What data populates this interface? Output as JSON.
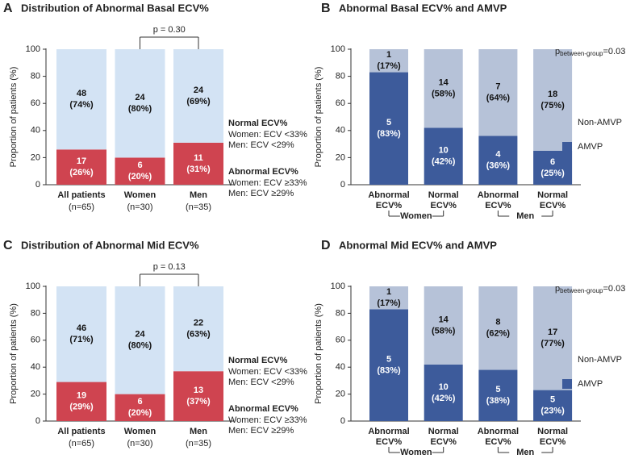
{
  "chart_data": [
    {
      "type": "bar",
      "stacked": true,
      "panel": "A",
      "title": "Distribution of Abnormal Basal ECV%",
      "ylabel": "Proportion of patients (%)",
      "categories": [
        "All patients",
        "Women",
        "Men"
      ],
      "category_notes": [
        "(n=65)",
        "(n=30)",
        "(n=35)"
      ],
      "series": [
        {
          "name": "Abnormal ECV%",
          "color": "#cf4450",
          "text_color": "#ffffff",
          "legend_details": [
            "Women: ECV ≥33%",
            "Men: ECV ≥29%"
          ],
          "values": [
            26,
            20,
            31
          ],
          "value_labels": [
            "(26%)",
            "(20%)",
            "(31%)"
          ],
          "counts": [
            17,
            6,
            11
          ]
        },
        {
          "name": "Normal ECV%",
          "color": "#d3e3f4",
          "text_color": "#111111",
          "legend_details": [
            "Women: ECV <33%",
            "Men: ECV <29%"
          ],
          "values": [
            74,
            80,
            69
          ],
          "value_labels": [
            "(74%)",
            "(80%)",
            "(69%)"
          ],
          "counts": [
            48,
            24,
            24
          ]
        }
      ],
      "annotation": "p = 0.30",
      "ylim": [
        0,
        100
      ],
      "yticks": [
        0,
        20,
        40,
        60,
        80,
        100
      ],
      "grid": false
    },
    {
      "type": "bar",
      "stacked": true,
      "panel": "B",
      "title": "Abnormal Basal ECV% and AMVP",
      "ylabel": "Proportion of patients (%)",
      "categories": [
        [
          "Abnormal",
          "ECV%"
        ],
        [
          "Normal",
          "ECV%"
        ],
        [
          "Abnormal",
          "ECV%"
        ],
        [
          "Normal",
          "ECV%"
        ]
      ],
      "groups": [
        "Women",
        "Men"
      ],
      "series": [
        {
          "name": "AMVP",
          "color": "#3d5b9b",
          "text_color": "#ffffff",
          "values": [
            83,
            42,
            36,
            25
          ],
          "value_labels": [
            "(83%)",
            "(42%)",
            "(36%)",
            "(25%)"
          ],
          "counts": [
            5,
            10,
            4,
            6
          ]
        },
        {
          "name": "Non-AMVP",
          "color": "#b6c2d8",
          "text_color": "#111111",
          "values": [
            17,
            58,
            64,
            75
          ],
          "value_labels": [
            "(17%)",
            "(58%)",
            "(64%)",
            "(75%)"
          ],
          "counts": [
            1,
            14,
            7,
            18
          ]
        }
      ],
      "pvalue": {
        "symbol": "p",
        "subscript": "between-group",
        "text": "=0.03"
      },
      "ylim": [
        0,
        100
      ],
      "yticks": [
        0,
        20,
        40,
        60,
        80,
        100
      ],
      "grid": false
    },
    {
      "type": "bar",
      "stacked": true,
      "panel": "C",
      "title": "Distribution of Abnormal Mid ECV%",
      "ylabel": "Proportion of patients (%)",
      "categories": [
        "All patients",
        "Women",
        "Men"
      ],
      "category_notes": [
        "(n=65)",
        "(n=30)",
        "(n=35)"
      ],
      "series": [
        {
          "name": "Abnormal ECV%",
          "color": "#cf4450",
          "text_color": "#ffffff",
          "legend_details": [
            "Women: ECV ≥33%",
            "Men: ECV ≥29%"
          ],
          "values": [
            29,
            20,
            37
          ],
          "value_labels": [
            "(29%)",
            "(20%)",
            "(37%)"
          ],
          "counts": [
            19,
            6,
            13
          ]
        },
        {
          "name": "Normal ECV%",
          "color": "#d3e3f4",
          "text_color": "#111111",
          "legend_details": [
            "Women: ECV <33%",
            "Men: ECV <29%"
          ],
          "values": [
            71,
            80,
            63
          ],
          "value_labels": [
            "(71%)",
            "(80%)",
            "(63%)"
          ],
          "counts": [
            46,
            24,
            22
          ]
        }
      ],
      "annotation": "p = 0.13",
      "ylim": [
        0,
        100
      ],
      "yticks": [
        0,
        20,
        40,
        60,
        80,
        100
      ],
      "grid": false
    },
    {
      "type": "bar",
      "stacked": true,
      "panel": "D",
      "title": "Abnormal Mid ECV% and AMVP",
      "ylabel": "Proportion of patients (%)",
      "categories": [
        [
          "Abnormal",
          "ECV%"
        ],
        [
          "Normal",
          "ECV%"
        ],
        [
          "Abnormal",
          "ECV%"
        ],
        [
          "Normal",
          "ECV%"
        ]
      ],
      "groups": [
        "Women",
        "Men"
      ],
      "series": [
        {
          "name": "AMVP",
          "color": "#3d5b9b",
          "text_color": "#ffffff",
          "values": [
            83,
            42,
            38,
            23
          ],
          "value_labels": [
            "(83%)",
            "(42%)",
            "(38%)",
            "(23%)"
          ],
          "counts": [
            5,
            10,
            5,
            5
          ]
        },
        {
          "name": "Non-AMVP",
          "color": "#b6c2d8",
          "text_color": "#111111",
          "values": [
            17,
            58,
            62,
            77
          ],
          "value_labels": [
            "(17%)",
            "(58%)",
            "(62%)",
            "(77%)"
          ],
          "counts": [
            1,
            14,
            8,
            17
          ]
        }
      ],
      "pvalue": {
        "symbol": "p",
        "subscript": "between-group",
        "text": "=0.03"
      },
      "ylim": [
        0,
        100
      ],
      "yticks": [
        0,
        20,
        40,
        60,
        80,
        100
      ],
      "grid": false
    }
  ]
}
